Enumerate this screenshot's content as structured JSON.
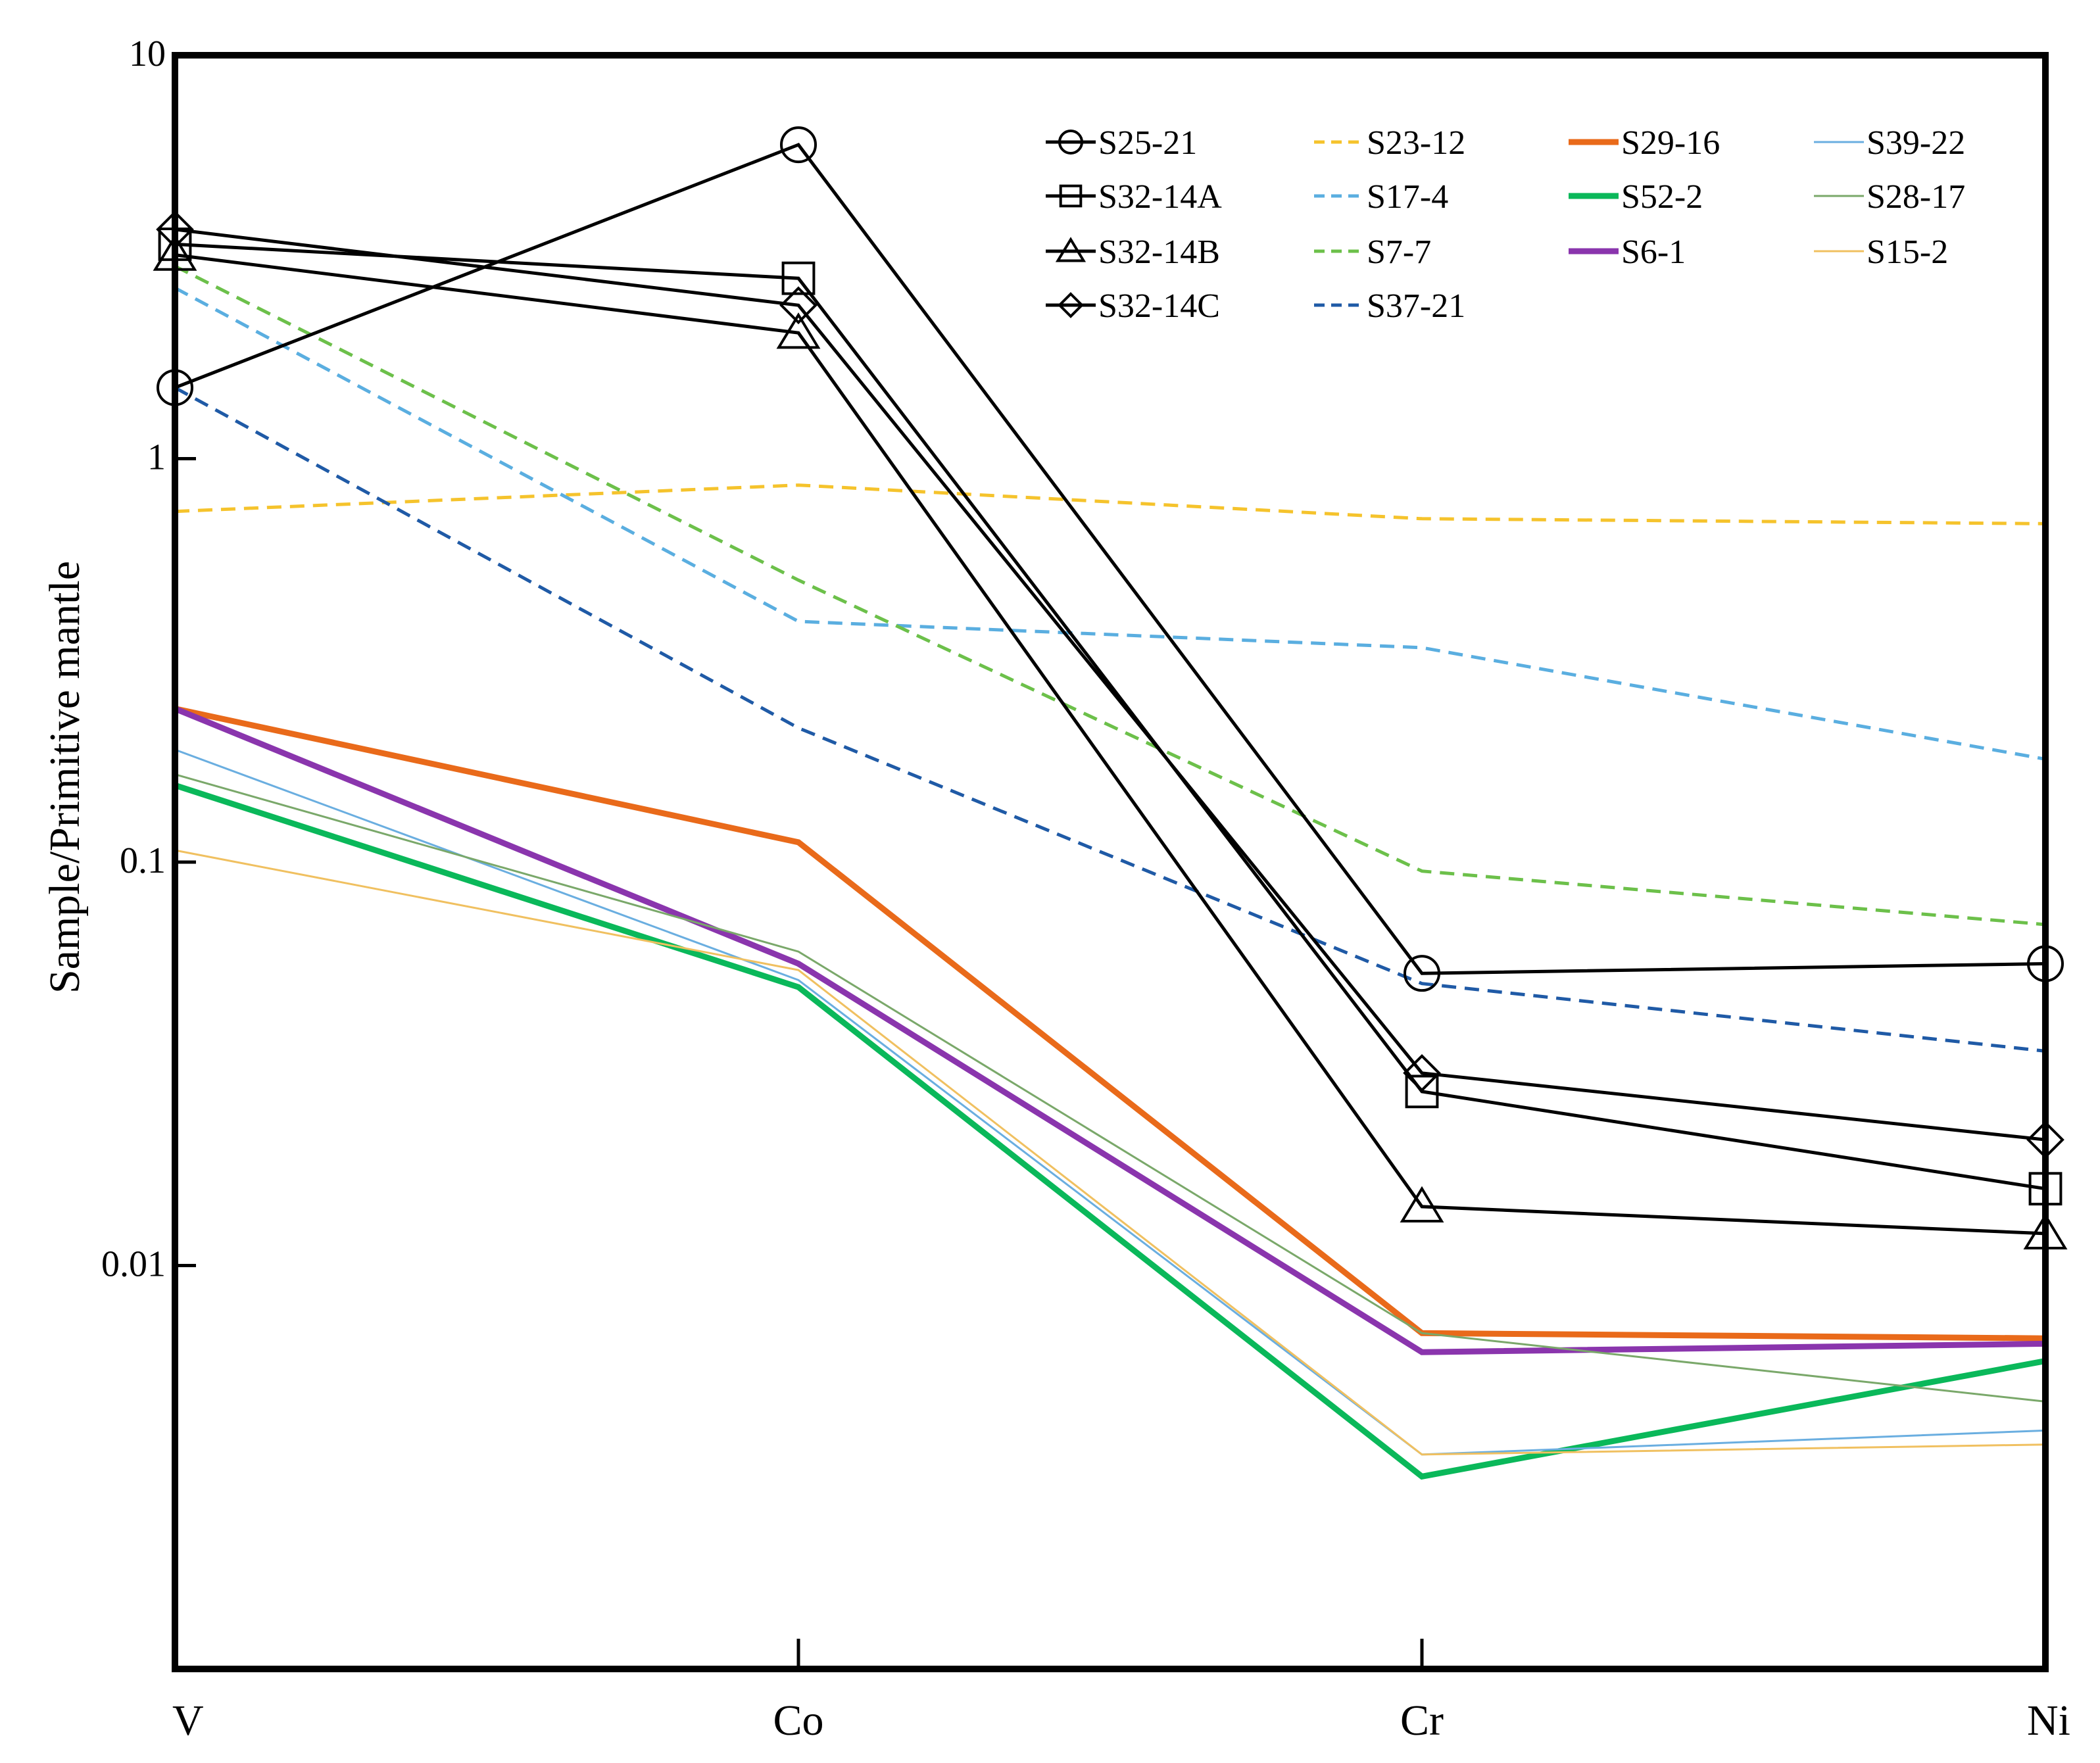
{
  "chart_data": {
    "type": "line",
    "scale": "log",
    "ylabel": "Sample/Primitive mantle",
    "xlabel": "",
    "categories": [
      "V",
      "Co",
      "Cr",
      "Ni"
    ],
    "ylim": [
      0.001,
      10
    ],
    "yticks": [
      {
        "value": 10,
        "label": "10"
      },
      {
        "value": 1,
        "label": "1"
      },
      {
        "value": 0.1,
        "label": "0.1"
      },
      {
        "value": 0.01,
        "label": "0.01"
      }
    ],
    "series": [
      {
        "name": "S25-21",
        "color": "#000000",
        "dash": "solid",
        "weight": "medium",
        "marker": "circle",
        "values": [
          1.5,
          6.0,
          0.053,
          0.056
        ]
      },
      {
        "name": "S32-14A",
        "color": "#000000",
        "dash": "solid",
        "weight": "medium",
        "marker": "square",
        "values": [
          3.4,
          2.8,
          0.027,
          0.0155
        ]
      },
      {
        "name": "S32-14B",
        "color": "#000000",
        "dash": "solid",
        "weight": "medium",
        "marker": "triangle",
        "values": [
          3.2,
          2.05,
          0.014,
          0.012
        ]
      },
      {
        "name": "S32-14C",
        "color": "#000000",
        "dash": "solid",
        "weight": "medium",
        "marker": "diamond",
        "values": [
          3.7,
          2.4,
          0.03,
          0.0205
        ]
      },
      {
        "name": "S23-12",
        "color": "#f5c32c",
        "dash": "dashed",
        "weight": "medium",
        "marker": "none",
        "values": [
          0.74,
          0.86,
          0.71,
          0.69
        ]
      },
      {
        "name": "S17-4",
        "color": "#5aaee0",
        "dash": "dashed",
        "weight": "medium",
        "marker": "none",
        "values": [
          2.65,
          0.395,
          0.34,
          0.18
        ]
      },
      {
        "name": "S7-7",
        "color": "#6cc04a",
        "dash": "dashed",
        "weight": "medium",
        "marker": "none",
        "values": [
          3.0,
          0.5,
          0.095,
          0.07
        ]
      },
      {
        "name": "S37-21",
        "color": "#1f5aa6",
        "dash": "dashed",
        "weight": "medium",
        "marker": "none",
        "values": [
          1.5,
          0.215,
          0.05,
          0.034
        ]
      },
      {
        "name": "S29-16",
        "color": "#e96a1a",
        "dash": "solid",
        "weight": "bold",
        "marker": "none",
        "values": [
          0.24,
          0.112,
          0.0068,
          0.0066
        ]
      },
      {
        "name": "S52-2",
        "color": "#0ab85a",
        "dash": "solid",
        "weight": "bold",
        "marker": "none",
        "values": [
          0.155,
          0.049,
          0.003,
          0.0058
        ]
      },
      {
        "name": "S6-1",
        "color": "#8a35ad",
        "dash": "solid",
        "weight": "bold",
        "marker": "none",
        "values": [
          0.24,
          0.056,
          0.0061,
          0.0064
        ]
      },
      {
        "name": "S39-22",
        "color": "#6aaee0",
        "dash": "solid",
        "weight": "thin",
        "marker": "none",
        "values": [
          0.19,
          0.051,
          0.0034,
          0.0039
        ]
      },
      {
        "name": "S28-17",
        "color": "#7aa86a",
        "dash": "solid",
        "weight": "thin",
        "marker": "none",
        "values": [
          0.165,
          0.06,
          0.0068,
          0.0046
        ]
      },
      {
        "name": "S15-2",
        "color": "#f0c060",
        "dash": "solid",
        "weight": "thin",
        "marker": "none",
        "values": [
          0.107,
          0.054,
          0.0034,
          0.0036
        ]
      }
    ],
    "legend": {
      "placement": "top-right",
      "columns": [
        [
          "S25-21",
          "S32-14A",
          "S32-14B",
          "S32-14C"
        ],
        [
          "S23-12",
          "S17-4",
          "S7-7",
          "S37-21"
        ],
        [
          "S29-16",
          "S52-2",
          "S6-1"
        ],
        [
          "S39-22",
          "S28-17",
          "S15-2"
        ]
      ]
    }
  }
}
